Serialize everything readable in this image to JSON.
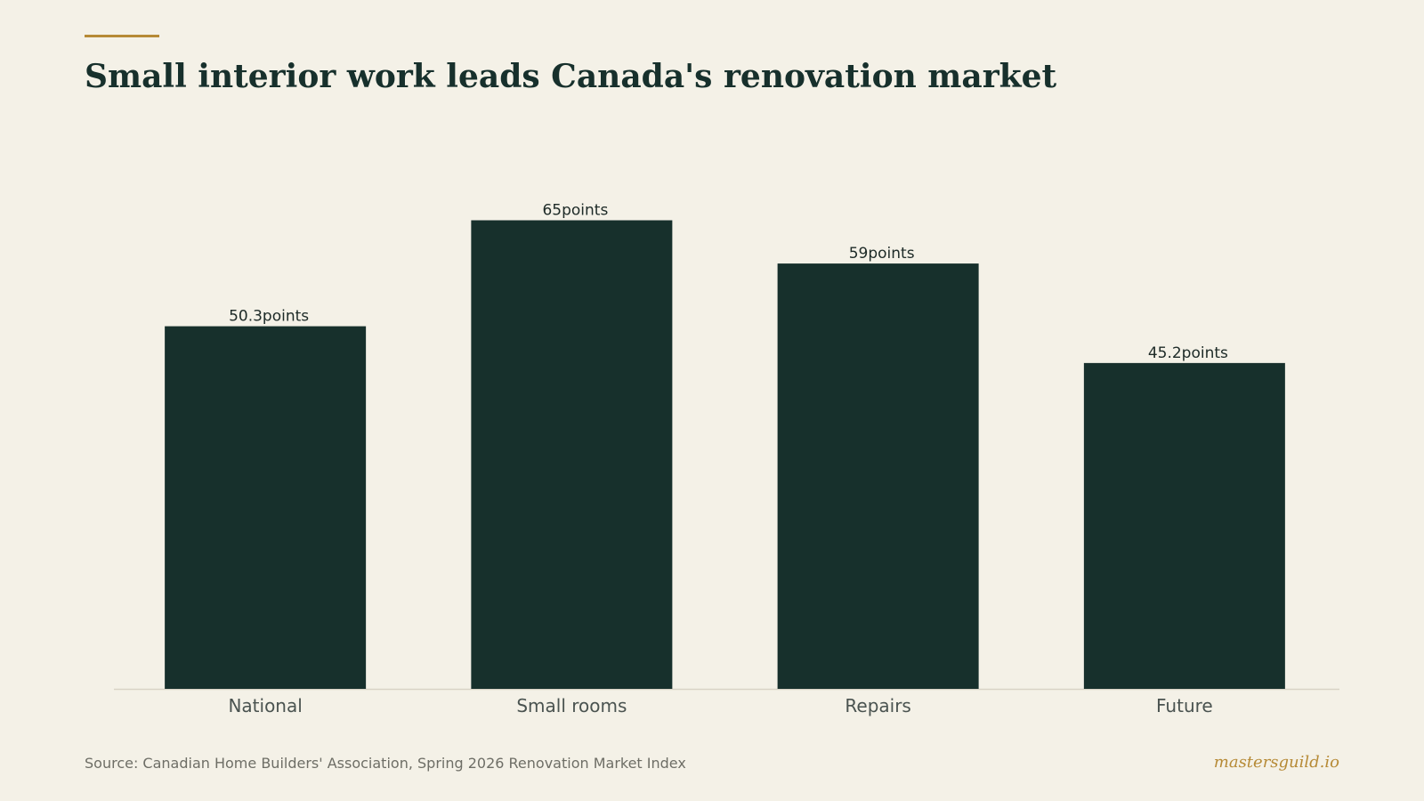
{
  "header": {
    "title": "Small interior work leads Canada's renovation market"
  },
  "chart_data": {
    "type": "bar",
    "categories": [
      "National",
      "Small rooms",
      "Repairs",
      "Future"
    ],
    "values": [
      50.3,
      65,
      59,
      45.2
    ],
    "value_labels": [
      "50.3points",
      "65points",
      "59points",
      "45.2points"
    ],
    "unit": "points",
    "title": "Small interior work leads Canada's renovation market",
    "xlabel": "",
    "ylabel": "",
    "ylim": [
      0,
      70
    ],
    "grid": false,
    "legend": "none",
    "colors": {
      "bar": "#17302c",
      "accent": "#b68a36",
      "background": "#f4f1e7"
    }
  },
  "footer": {
    "source": "Source: Canadian Home Builders' Association, Spring 2026 Renovation Market Index",
    "brand": "mastersguild.io"
  }
}
